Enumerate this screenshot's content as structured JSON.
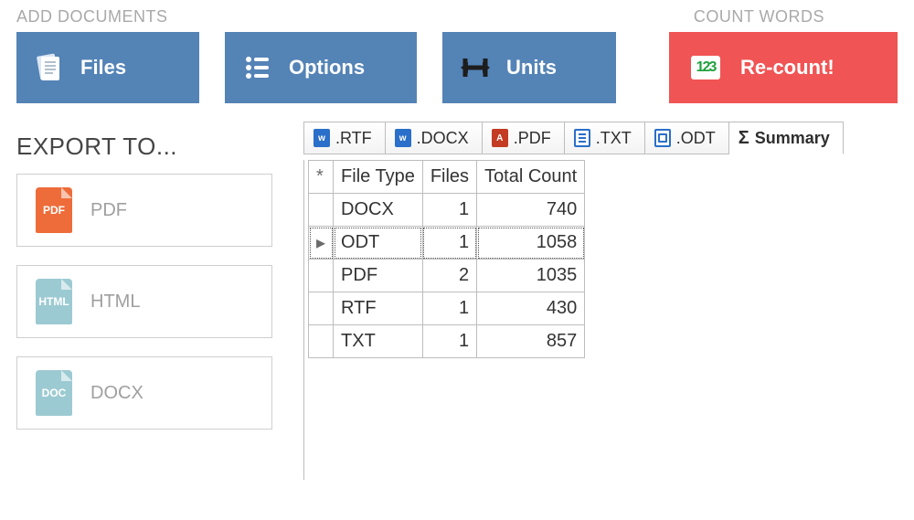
{
  "labels": {
    "add_documents": "ADD DOCUMENTS",
    "count_words": "COUNT WORDS",
    "export_to": "EXPORT TO..."
  },
  "toolbar": {
    "files": {
      "label": "Files"
    },
    "options": {
      "label": "Options"
    },
    "units": {
      "label": "Units"
    },
    "recount": {
      "label": "Re-count!"
    }
  },
  "colors": {
    "toolbar_blue": "#5483b6",
    "toolbar_red": "#f05454",
    "section_label": "#a9a9a9",
    "border": "#bdbdbd",
    "export_text": "#9f9f9f"
  },
  "export": {
    "items": [
      {
        "label": "PDF",
        "icon_text": "PDF",
        "icon_color": "#ee6c3a"
      },
      {
        "label": "HTML",
        "icon_text": "HTML",
        "icon_color": "#9ccad2"
      },
      {
        "label": "DOCX",
        "icon_text": "DOC",
        "icon_color": "#9ccad2"
      }
    ]
  },
  "tabs": {
    "items": [
      {
        "label": ".RTF",
        "icon": "w"
      },
      {
        "label": ".DOCX",
        "icon": "w"
      },
      {
        "label": ".PDF",
        "icon": "r"
      },
      {
        "label": ".TXT",
        "icon": "t"
      },
      {
        "label": ".ODT",
        "icon": "o"
      },
      {
        "label": "Summary",
        "icon": "sigma",
        "active": true
      }
    ]
  },
  "summary_table": {
    "corner": "*",
    "columns": [
      "File Type",
      "Files",
      "Total Count"
    ],
    "rows": [
      {
        "marker": "",
        "file_type": "DOCX",
        "files": 1,
        "total": 740,
        "selected": false
      },
      {
        "marker": "▸",
        "file_type": "ODT",
        "files": 1,
        "total": 1058,
        "selected": true
      },
      {
        "marker": "",
        "file_type": "PDF",
        "files": 2,
        "total": 1035,
        "selected": false
      },
      {
        "marker": "",
        "file_type": "RTF",
        "files": 1,
        "total": 430,
        "selected": false
      },
      {
        "marker": "",
        "file_type": "TXT",
        "files": 1,
        "total": 857,
        "selected": false
      }
    ]
  }
}
